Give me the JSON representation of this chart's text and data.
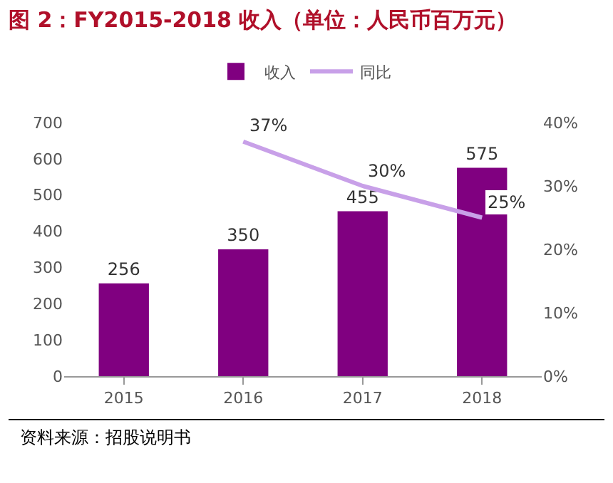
{
  "chart_data": {
    "type": "bar",
    "title": "图 2：FY2015-2018 收入（单位：人民币百万元）",
    "categories": [
      "2015",
      "2016",
      "2017",
      "2018"
    ],
    "series": [
      {
        "name": "收入",
        "color": "#800080",
        "values": [
          256,
          350,
          455,
          575
        ],
        "value_labels": [
          "256",
          "350",
          "455",
          "575"
        ]
      },
      {
        "name": "同比",
        "type": "line",
        "axis": "y2",
        "color": "#c8a0e8",
        "values": [
          null,
          37,
          30,
          25
        ],
        "value_labels": [
          null,
          "37%",
          "30%",
          "25%"
        ]
      }
    ],
    "ylim": [
      0,
      700
    ],
    "yticks": [
      0,
      100,
      200,
      300,
      400,
      500,
      600,
      700
    ],
    "y2lim": [
      0,
      40
    ],
    "y2ticks": [
      {
        "value": 0,
        "label": "0%"
      },
      {
        "value": 10,
        "label": "10%"
      },
      {
        "value": 20,
        "label": "20%"
      },
      {
        "value": 30,
        "label": "30%"
      },
      {
        "value": 40,
        "label": "40%"
      }
    ],
    "legend": "top",
    "grid": false,
    "marker": "none",
    "line_style": "solid",
    "annotations": [
      "资料来源：招股说明书"
    ]
  }
}
